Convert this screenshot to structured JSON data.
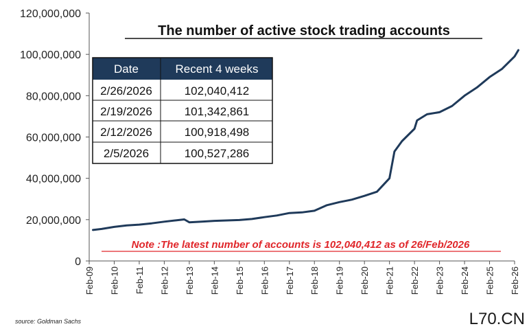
{
  "chart_data": {
    "type": "line",
    "title": "The number of active stock trading accounts",
    "xlabel": "",
    "ylabel": "",
    "x_ticks": [
      "Feb-09",
      "Feb-10",
      "Feb-11",
      "Feb-12",
      "Feb-13",
      "Feb-14",
      "Feb-15",
      "Feb-16",
      "Feb-17",
      "Feb-18",
      "Feb-19",
      "Feb-20",
      "Feb-21",
      "Feb-22",
      "Feb-23",
      "Feb-24",
      "Feb-25",
      "Feb-26"
    ],
    "y_ticks": [
      "0",
      "20,000,000",
      "40,000,000",
      "60,000,000",
      "80,000,000",
      "100,000,000",
      "120,000,000"
    ],
    "ylim": [
      0,
      120000000
    ],
    "xlim": [
      2009.0,
      2026.0
    ],
    "grid": false,
    "line_color": "#1f3a5a",
    "series": [
      {
        "x": [
          2009.15,
          2009.5,
          2010.0,
          2010.5,
          2011.0,
          2011.5,
          2012.0,
          2012.5,
          2012.8,
          2013.0,
          2013.5,
          2014.0,
          2014.5,
          2015.0,
          2015.5,
          2016.0,
          2016.5,
          2017.0,
          2017.5,
          2018.0,
          2018.5,
          2019.0,
          2019.5,
          2020.0,
          2020.5,
          2021.0,
          2021.2,
          2021.5,
          2022.0,
          2022.1,
          2022.5,
          2023.0,
          2023.5,
          2024.0,
          2024.5,
          2025.0,
          2025.5,
          2026.0,
          2026.15
        ],
        "y": [
          15000000,
          15500000,
          16500000,
          17200000,
          17600000,
          18200000,
          19000000,
          19700000,
          20100000,
          18700000,
          19000000,
          19400000,
          19600000,
          19800000,
          20300000,
          21200000,
          22000000,
          23200000,
          23500000,
          24300000,
          27000000,
          28500000,
          29700000,
          31500000,
          33500000,
          40000000,
          53000000,
          58000000,
          64000000,
          68000000,
          71000000,
          72000000,
          75000000,
          80000000,
          84000000,
          89000000,
          93000000,
          99000000,
          102040412
        ]
      }
    ],
    "table": {
      "headers": [
        "Date",
        "Recent 4 weeks"
      ],
      "rows": [
        [
          "2/26/2026",
          "102,040,412"
        ],
        [
          "2/19/2026",
          "101,342,861"
        ],
        [
          "2/12/2026",
          "100,918,498"
        ],
        [
          "2/5/2026",
          "100,527,286"
        ]
      ],
      "header_bg": "#1f3a5a"
    },
    "annotation": "Note :The latest number of accounts  is 102,040,412 as of 26/Feb/2026",
    "annotation_color": "#e0262a"
  },
  "source": "source: Goldman Sachs",
  "watermark": "L70.CN"
}
